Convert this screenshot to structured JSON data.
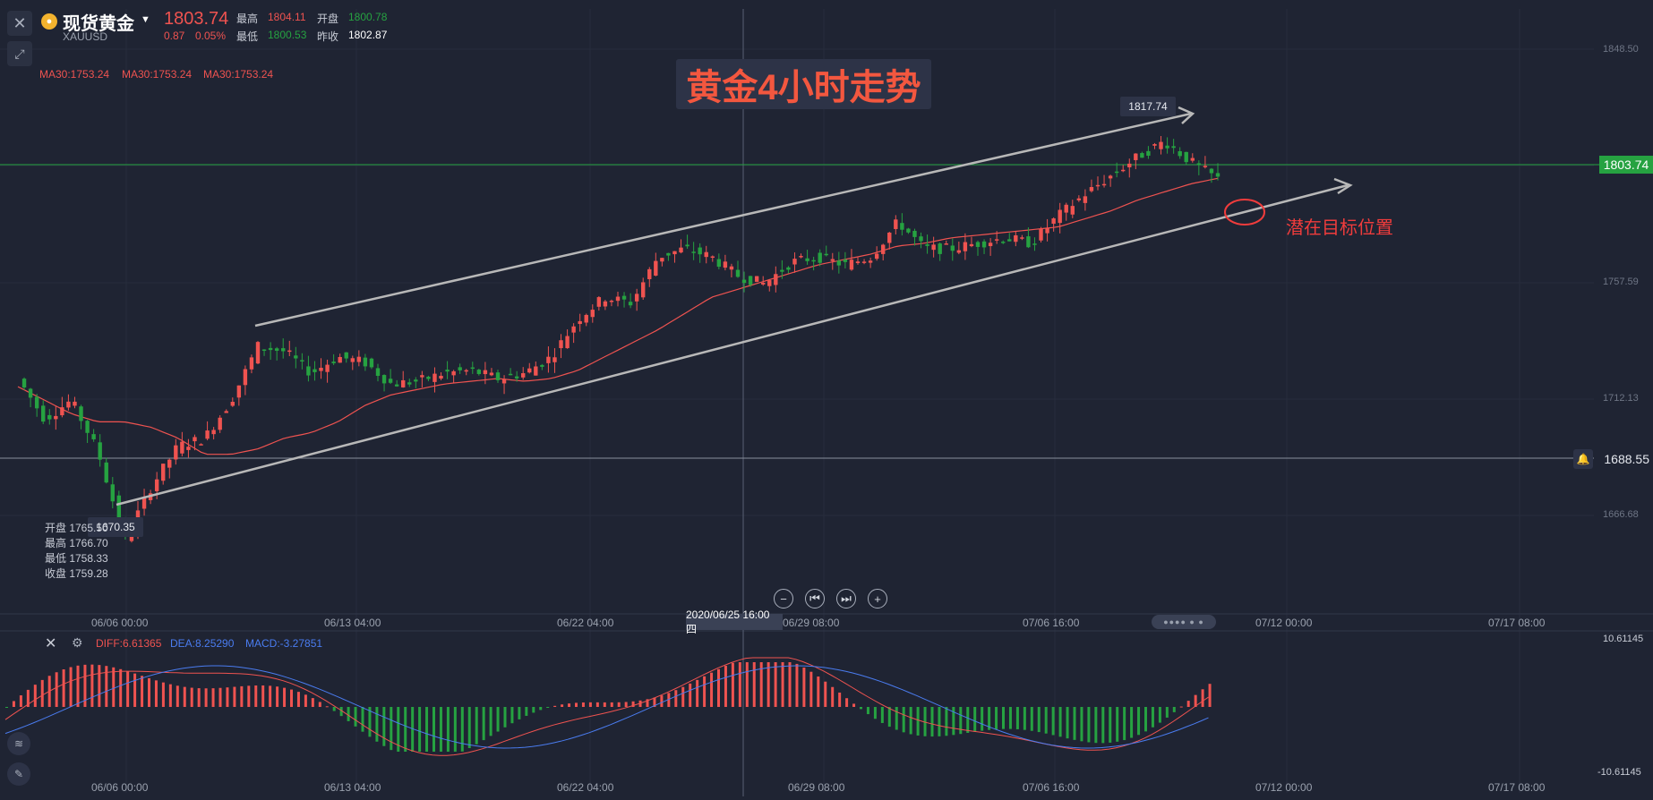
{
  "header": {
    "symbol_name": "现货黄金",
    "symbol_code": "XAUUSD",
    "last_price": "1803.74",
    "change": "0.87",
    "change_pct": "0.05%",
    "high_label": "最高",
    "high_value": "1804.11",
    "open_label": "开盘",
    "open_value": "1800.78",
    "low_label": "最低",
    "low_value": "1800.53",
    "prev_label": "昨收",
    "prev_value": "1802.87"
  },
  "ma_labels": [
    "MA30:1753.24",
    "MA30:1753.24",
    "MA30:1753.24"
  ],
  "annotations": {
    "title": "黄金4小时走势",
    "target": "潜在目标位置",
    "high_marker": "1817.74",
    "low_marker": "1670.35"
  },
  "ohlc_box": {
    "open": "开盘 1765.50",
    "high": "最高 1766.70",
    "low": "最低 1758.33",
    "close": "收盘 1759.28"
  },
  "price_tag": "1803.74",
  "alert_line": "1688.55",
  "crosshair_date": "2020/06/25 16:00 四",
  "nav_buttons": [
    "−",
    "⏮",
    "⏭",
    "+"
  ],
  "scroll_indicator": "●●●● ● ●",
  "macd": {
    "diff": "DIFF:6.61365",
    "dea": "DEA:8.25290",
    "macd": "MACD:-3.27851",
    "axis_top": "10.61145",
    "axis_bottom": "-10.61145"
  },
  "colors": {
    "background": "#1f2433",
    "up": "#ef5350",
    "down": "#26a241",
    "ma": "#ef5350",
    "dea": "#4a7cf0",
    "channel": "#b8b8b8"
  },
  "icons": {
    "close": "close-icon",
    "drawing": "drawing-tool-icon",
    "gold": "gold-coin-icon",
    "bell": "bell-icon",
    "settings": "gear-icon",
    "pencil": "pencil-icon"
  },
  "chart_data": {
    "type": "candlestick",
    "title": "黄金4小时走势",
    "symbol": "XAUUSD",
    "interval": "4H",
    "y_ticks": [
      "1848.50",
      "1803.74",
      "1757.59",
      "1712.13",
      "1688.55",
      "1666.68"
    ],
    "x_ticks": [
      "06/06 00:00",
      "06/13 04:00",
      "06/22 04:00",
      "2020/06/25 16:00 四",
      "06/29 08:00",
      "07/06 16:00",
      "07/12 00:00",
      "07/17 08:00"
    ],
    "ylim": [
      1645,
      1860
    ],
    "anchors": [
      {
        "price": 1730,
        "ma": 1727
      },
      {
        "price": 1715,
        "ma": 1722
      },
      {
        "price": 1722,
        "ma": 1717
      },
      {
        "price": 1703,
        "ma": 1714
      },
      {
        "price": 1670.35,
        "ma": 1714
      },
      {
        "price": 1690,
        "ma": 1712
      },
      {
        "price": 1705,
        "ma": 1708
      },
      {
        "price": 1708,
        "ma": 1702
      },
      {
        "price": 1722,
        "ma": 1702
      },
      {
        "price": 1742,
        "ma": 1704
      },
      {
        "price": 1740,
        "ma": 1708
      },
      {
        "price": 1732,
        "ma": 1710
      },
      {
        "price": 1738,
        "ma": 1714
      },
      {
        "price": 1736,
        "ma": 1720
      },
      {
        "price": 1728,
        "ma": 1724
      },
      {
        "price": 1729,
        "ma": 1726
      },
      {
        "price": 1732,
        "ma": 1728
      },
      {
        "price": 1733,
        "ma": 1729
      },
      {
        "price": 1730,
        "ma": 1730
      },
      {
        "price": 1732,
        "ma": 1729
      },
      {
        "price": 1738,
        "ma": 1730
      },
      {
        "price": 1752,
        "ma": 1733
      },
      {
        "price": 1760,
        "ma": 1738
      },
      {
        "price": 1758,
        "ma": 1743
      },
      {
        "price": 1775,
        "ma": 1748
      },
      {
        "price": 1778,
        "ma": 1754
      },
      {
        "price": 1775,
        "ma": 1760
      },
      {
        "price": 1768,
        "ma": 1763
      },
      {
        "price": 1765,
        "ma": 1766
      },
      {
        "price": 1773,
        "ma": 1769
      },
      {
        "price": 1775,
        "ma": 1772
      },
      {
        "price": 1772,
        "ma": 1774
      },
      {
        "price": 1775,
        "ma": 1776
      },
      {
        "price": 1788,
        "ma": 1779
      },
      {
        "price": 1778,
        "ma": 1780
      },
      {
        "price": 1778,
        "ma": 1782
      },
      {
        "price": 1780,
        "ma": 1783
      },
      {
        "price": 1782,
        "ma": 1784
      },
      {
        "price": 1780,
        "ma": 1785
      },
      {
        "price": 1790,
        "ma": 1786
      },
      {
        "price": 1798,
        "ma": 1789
      },
      {
        "price": 1805,
        "ma": 1792
      },
      {
        "price": 1812,
        "ma": 1796
      },
      {
        "price": 1817.74,
        "ma": 1799
      },
      {
        "price": 1810,
        "ma": 1802
      },
      {
        "price": 1803.74,
        "ma": 1804
      }
    ],
    "macd": {
      "ylim": [
        -10.61145,
        10.61145
      ],
      "diff_label": "DIFF:6.61365",
      "dea_label": "DEA:8.25290",
      "macd_label": "MACD:-3.27851"
    }
  }
}
